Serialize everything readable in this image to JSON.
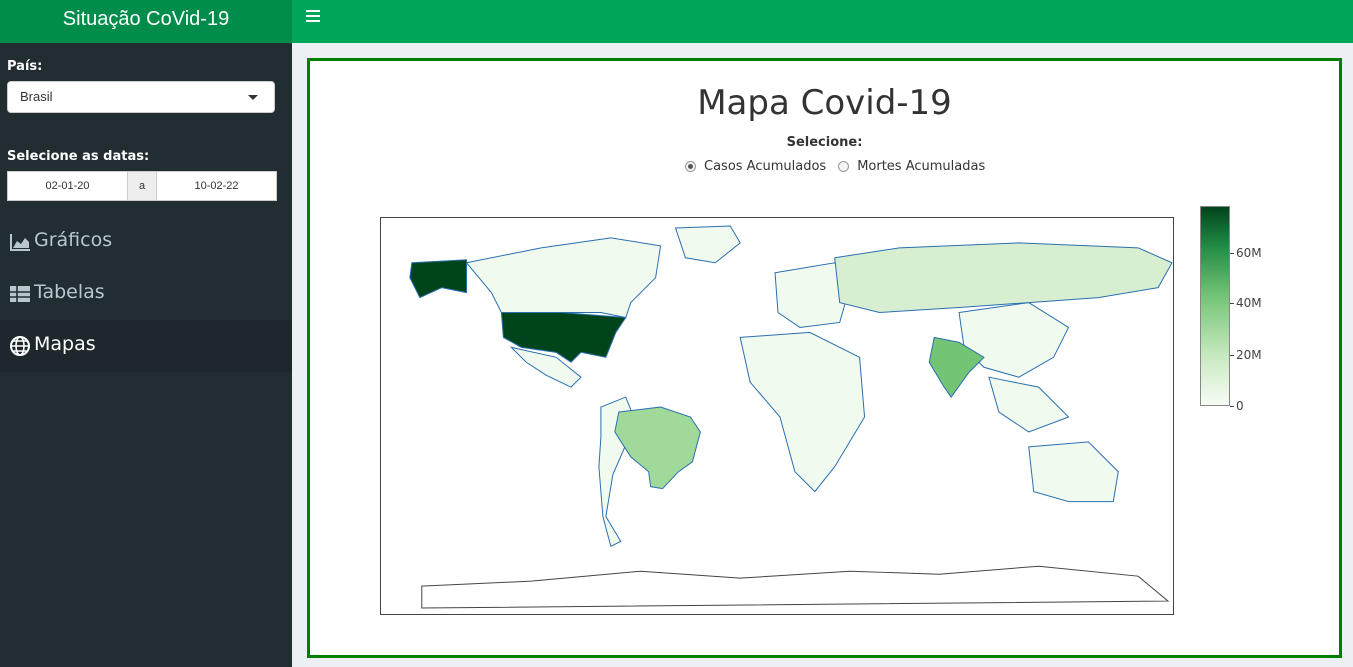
{
  "app": {
    "title": "Situação CoVid-19"
  },
  "sidebar": {
    "country_label": "País:",
    "country_value": "Brasil",
    "dates_label": "Selecione as datas:",
    "date_start": "02-01-20",
    "date_separator": "a",
    "date_end": "10-02-22",
    "menu": [
      {
        "label": "Gráficos",
        "icon": "area-chart-icon",
        "active": false
      },
      {
        "label": "Tabelas",
        "icon": "table-icon",
        "active": false
      },
      {
        "label": "Mapas",
        "icon": "globe-icon",
        "active": true
      }
    ]
  },
  "main": {
    "title": "Mapa Covid-19",
    "select_label": "Selecione:",
    "options": [
      {
        "label": "Casos Acumulados",
        "selected": true
      },
      {
        "label": "Mortes Acumuladas",
        "selected": false
      }
    ],
    "legend_ticks": [
      "60M",
      "40M",
      "20M",
      "0"
    ]
  },
  "colors": {
    "brand": "#008d4c",
    "topbar": "#00a65a",
    "sidebar": "#222d32",
    "box_border": "#008000"
  }
}
